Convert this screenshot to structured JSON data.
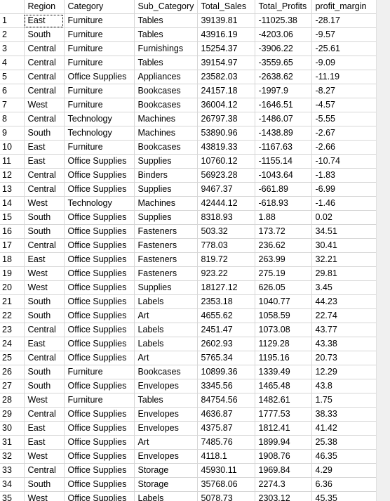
{
  "grid": {
    "columns": [
      "",
      "Region",
      "Category",
      "Sub_Category",
      "Total_Sales",
      "Total_Profits",
      "profit_margin"
    ],
    "rows": [
      [
        "1",
        "East",
        "Furniture",
        "Tables",
        "39139.81",
        "-11025.38",
        "-28.17"
      ],
      [
        "2",
        "South",
        "Furniture",
        "Tables",
        "43916.19",
        "-4203.06",
        "-9.57"
      ],
      [
        "3",
        "Central",
        "Furniture",
        "Furnishings",
        "15254.37",
        "-3906.22",
        "-25.61"
      ],
      [
        "4",
        "Central",
        "Furniture",
        "Tables",
        "39154.97",
        "-3559.65",
        "-9.09"
      ],
      [
        "5",
        "Central",
        "Office Supplies",
        "Appliances",
        "23582.03",
        "-2638.62",
        "-11.19"
      ],
      [
        "6",
        "Central",
        "Furniture",
        "Bookcases",
        "24157.18",
        "-1997.9",
        "-8.27"
      ],
      [
        "7",
        "West",
        "Furniture",
        "Bookcases",
        "36004.12",
        "-1646.51",
        "-4.57"
      ],
      [
        "8",
        "Central",
        "Technology",
        "Machines",
        "26797.38",
        "-1486.07",
        "-5.55"
      ],
      [
        "9",
        "South",
        "Technology",
        "Machines",
        "53890.96",
        "-1438.89",
        "-2.67"
      ],
      [
        "10",
        "East",
        "Furniture",
        "Bookcases",
        "43819.33",
        "-1167.63",
        "-2.66"
      ],
      [
        "11",
        "East",
        "Office Supplies",
        "Supplies",
        "10760.12",
        "-1155.14",
        "-10.74"
      ],
      [
        "12",
        "Central",
        "Office Supplies",
        "Binders",
        "56923.28",
        "-1043.64",
        "-1.83"
      ],
      [
        "13",
        "Central",
        "Office Supplies",
        "Supplies",
        "9467.37",
        "-661.89",
        "-6.99"
      ],
      [
        "14",
        "West",
        "Technology",
        "Machines",
        "42444.12",
        "-618.93",
        "-1.46"
      ],
      [
        "15",
        "South",
        "Office Supplies",
        "Supplies",
        "8318.93",
        "1.88",
        "0.02"
      ],
      [
        "16",
        "South",
        "Office Supplies",
        "Fasteners",
        "503.32",
        "173.72",
        "34.51"
      ],
      [
        "17",
        "Central",
        "Office Supplies",
        "Fasteners",
        "778.03",
        "236.62",
        "30.41"
      ],
      [
        "18",
        "East",
        "Office Supplies",
        "Fasteners",
        "819.72",
        "263.99",
        "32.21"
      ],
      [
        "19",
        "West",
        "Office Supplies",
        "Fasteners",
        "923.22",
        "275.19",
        "29.81"
      ],
      [
        "20",
        "West",
        "Office Supplies",
        "Supplies",
        "18127.12",
        "626.05",
        "3.45"
      ],
      [
        "21",
        "South",
        "Office Supplies",
        "Labels",
        "2353.18",
        "1040.77",
        "44.23"
      ],
      [
        "22",
        "South",
        "Office Supplies",
        "Art",
        "4655.62",
        "1058.59",
        "22.74"
      ],
      [
        "23",
        "Central",
        "Office Supplies",
        "Labels",
        "2451.47",
        "1073.08",
        "43.77"
      ],
      [
        "24",
        "East",
        "Office Supplies",
        "Labels",
        "2602.93",
        "1129.28",
        "43.38"
      ],
      [
        "25",
        "Central",
        "Office Supplies",
        "Art",
        "5765.34",
        "1195.16",
        "20.73"
      ],
      [
        "26",
        "South",
        "Furniture",
        "Bookcases",
        "10899.36",
        "1339.49",
        "12.29"
      ],
      [
        "27",
        "South",
        "Office Supplies",
        "Envelopes",
        "3345.56",
        "1465.48",
        "43.8"
      ],
      [
        "28",
        "West",
        "Furniture",
        "Tables",
        "84754.56",
        "1482.61",
        "1.75"
      ],
      [
        "29",
        "Central",
        "Office Supplies",
        "Envelopes",
        "4636.87",
        "1777.53",
        "38.33"
      ],
      [
        "30",
        "East",
        "Office Supplies",
        "Envelopes",
        "4375.87",
        "1812.41",
        "41.42"
      ],
      [
        "31",
        "East",
        "Office Supplies",
        "Art",
        "7485.76",
        "1899.94",
        "25.38"
      ],
      [
        "32",
        "West",
        "Office Supplies",
        "Envelopes",
        "4118.1",
        "1908.76",
        "46.35"
      ],
      [
        "33",
        "Central",
        "Office Supplies",
        "Storage",
        "45930.11",
        "1969.84",
        "4.29"
      ],
      [
        "34",
        "South",
        "Office Supplies",
        "Storage",
        "35768.06",
        "2274.3",
        "6.36"
      ],
      [
        "35",
        "West",
        "Office Supplies",
        "Labels",
        "5078.73",
        "2303.12",
        "45.35"
      ]
    ]
  }
}
